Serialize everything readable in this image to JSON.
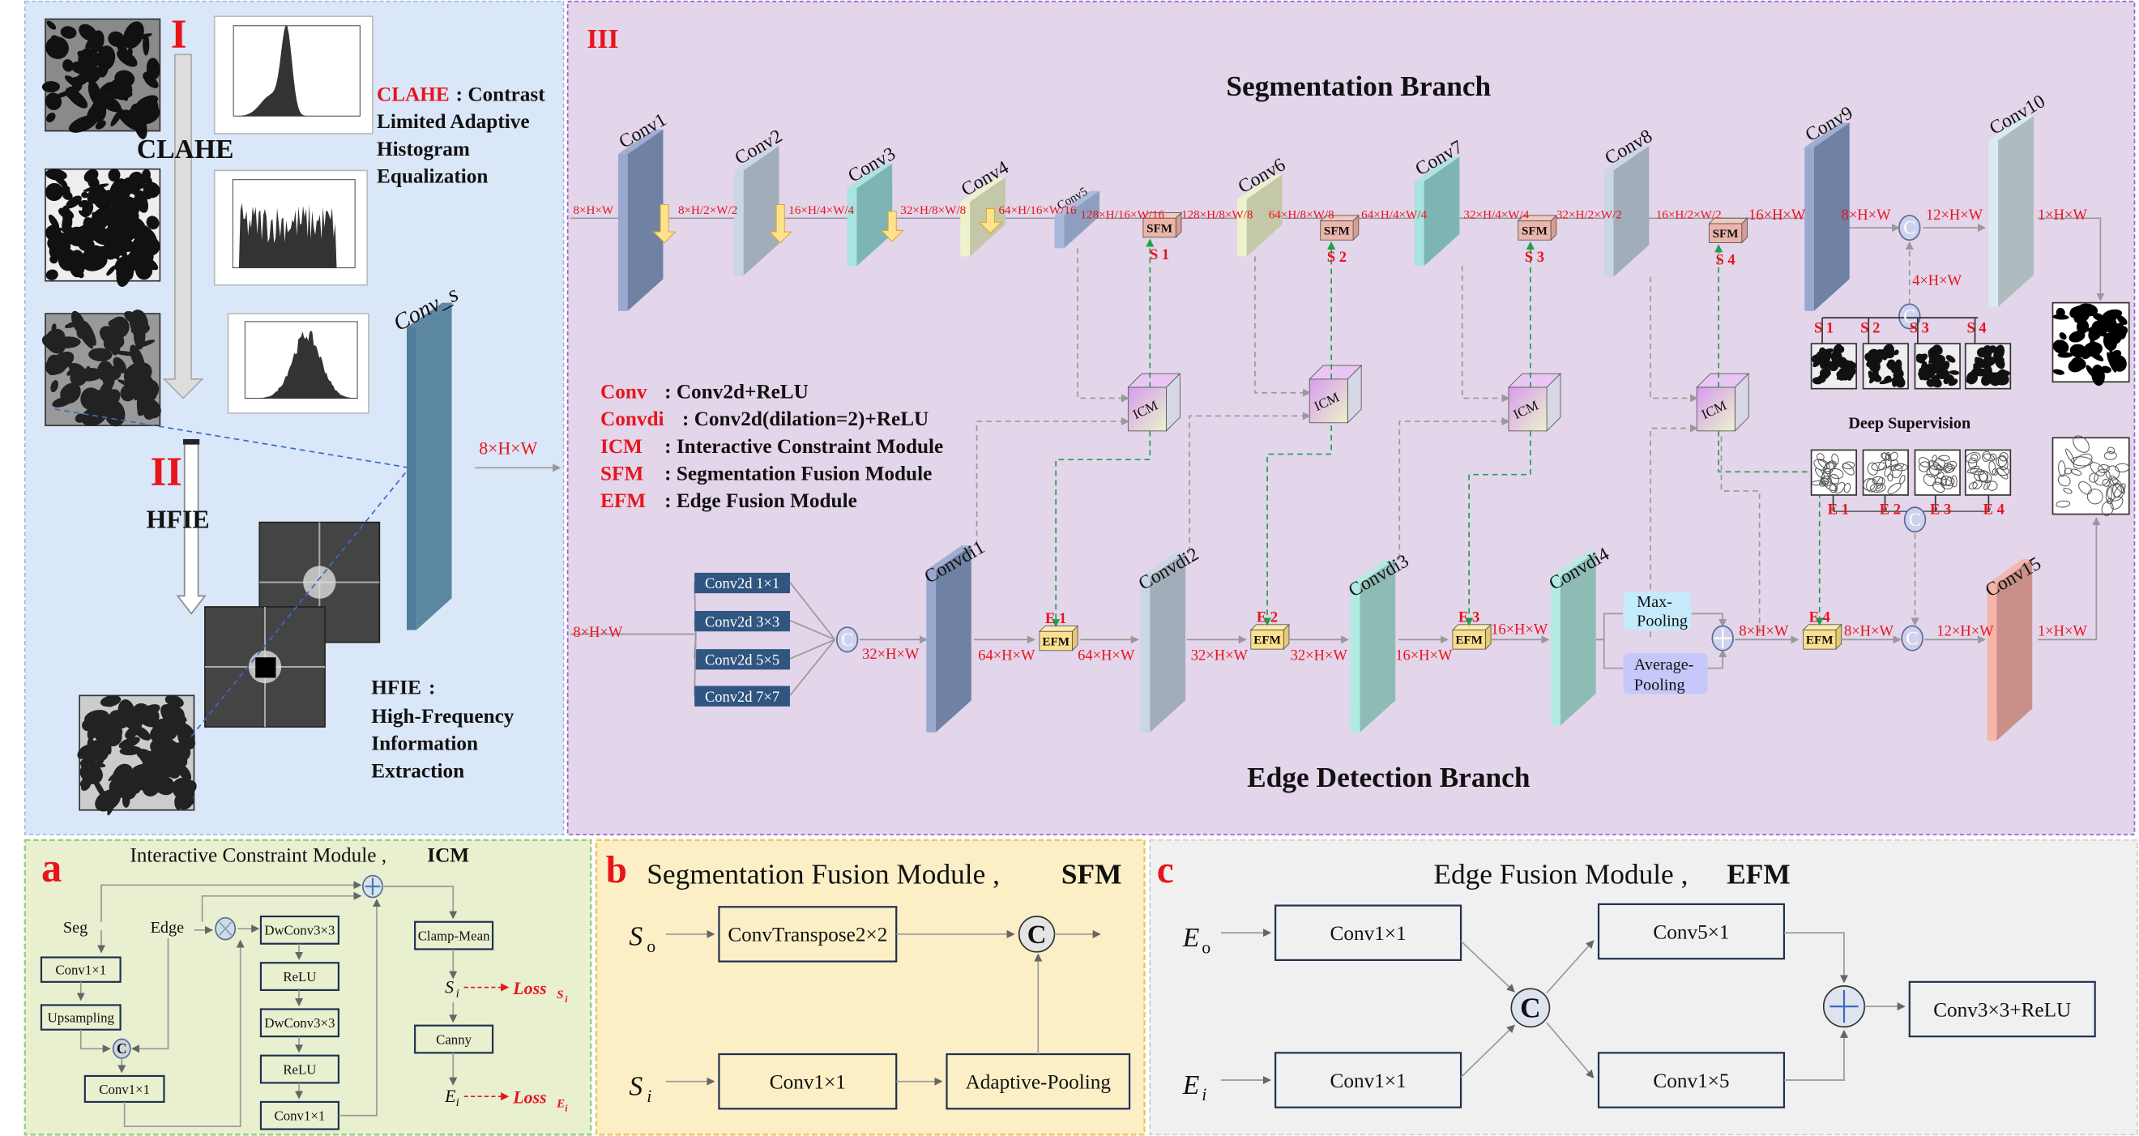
{
  "colors": {
    "accent_red": "#e8141b",
    "panel_left": "#dae7f8",
    "panel_main": "#e3d5ea",
    "panel_a": "#e8f0d0",
    "panel_b": "#fcefc6",
    "panel_c": "#f0f0f0",
    "sfm": "#eab3a8",
    "efm": "#fbe08e",
    "icm": "#d9a8ee",
    "multi_conv": "#2f5580",
    "green_dash": "#1aa34a"
  },
  "left": {
    "roman1": "I",
    "clahe": "CLAHE",
    "roman2": "II",
    "hfie": "HFIE",
    "clahe_key": "CLAHE",
    "clahe_lines": [
      ": Contrast",
      "Limited Adaptive",
      "Histogram",
      "Equalization"
    ],
    "hfie_key": "HFIE",
    "hfie_lines": [
      ":",
      "High-Frequency",
      "Information",
      "Extraction"
    ],
    "conv_s": "Conv_s",
    "conv_s_out": "8×H×W"
  },
  "main": {
    "roman": "III",
    "seg_title": "Segmentation Branch",
    "edge_title": "Edge Detection Branch",
    "seg_layers": [
      "Conv1",
      "Conv2",
      "Conv3",
      "Conv4",
      "Conv5",
      "Conv6",
      "Conv7",
      "Conv8",
      "Conv9",
      "Conv10"
    ],
    "seg_dims": [
      "8×H×W",
      "8×H/2×W/2",
      "16×H/4×W/4",
      "32×H/8×W/8",
      "64×H/16×W/16",
      "128×H/16×W/16",
      "128×H/8×W/8",
      "64×H/8×W/8",
      "64×H/4×W/4",
      "32×H/4×W/4",
      "32×H/2×W/2",
      "16×H/2×W/2",
      "16×H×W",
      "8×H×W",
      "12×H×W",
      "1×H×W",
      "4×H×W"
    ],
    "sfm": "SFM",
    "efm": "EFM",
    "icm": "ICM",
    "s_labels": [
      "S 1",
      "S 2",
      "S 3",
      "S 4"
    ],
    "e_labels": [
      "E 1",
      "E 2",
      "E 3",
      "E 4"
    ],
    "legend": [
      {
        "key": "Conv",
        "desc": ": Conv2d+ReLU"
      },
      {
        "key": "Convdi",
        "desc": ": Conv2d(dilation=2)+ReLU"
      },
      {
        "key": "ICM",
        "desc": ":  Interactive Constraint Module"
      },
      {
        "key": "SFM",
        "desc": ":  Segmentation Fusion Module"
      },
      {
        "key": "EFM",
        "desc": ": Edge Fusion Module"
      }
    ],
    "multi_conv": [
      "Conv2d 1×1",
      "Conv2d 3×3",
      "Conv2d 5×5",
      "Conv2d 7×7"
    ],
    "edge_layers": [
      "Convdi1",
      "Convdi2",
      "Convdi3",
      "Convdi4",
      "Conv15"
    ],
    "edge_dims": [
      "8×H×W",
      "32×H×W",
      "64×H×W",
      "64×H×W",
      "32×H×W",
      "32×H×W",
      "16×H×W",
      "16×H×W",
      "8×H×W",
      "8×H×W",
      "12×H×W",
      "1×H×W"
    ],
    "max_pool": [
      "Max-",
      "Pooling"
    ],
    "avg_pool": [
      "Average-",
      "Pooling"
    ],
    "concat": "C",
    "add": "+",
    "deep_supervision": "Deep Supervision"
  },
  "icm_panel": {
    "letter": "a",
    "title": "Interactive Constraint Module ,",
    "title_bold": "ICM",
    "seg": "Seg",
    "edge": "Edge",
    "boxes": [
      "Conv1×1",
      "Upsampling",
      "Conv1×1",
      "DwConv3×3",
      "ReLU",
      "DwConv3×3",
      "ReLU",
      "Conv1×1",
      "Clamp-Mean",
      "Canny"
    ],
    "si": "S",
    "si_sub": "i",
    "ei": "E",
    "ei_sub": "i",
    "loss": "Loss",
    "loss_s_sub": "S",
    "loss_e_sub": "E",
    "loss_i": "i",
    "concat": "C"
  },
  "sfm_panel": {
    "letter": "b",
    "title": "Segmentation Fusion Module ,",
    "title_bold": "SFM",
    "so": "S",
    "so_sub": "o",
    "si": "S",
    "si_sub": "i",
    "boxes": [
      "ConvTranspose2×2",
      "Conv1×1",
      "Adaptive-Pooling"
    ],
    "concat": "C"
  },
  "efm_panel": {
    "letter": "c",
    "title": "Edge Fusion Module ,",
    "title_bold": "EFM",
    "eo": "E",
    "eo_sub": "o",
    "ei": "E",
    "ei_sub": "i",
    "boxes": [
      "Conv1×1",
      "Conv1×1",
      "Conv5×1",
      "Conv1×5",
      "Conv3×3+ReLU"
    ],
    "concat": "C"
  }
}
